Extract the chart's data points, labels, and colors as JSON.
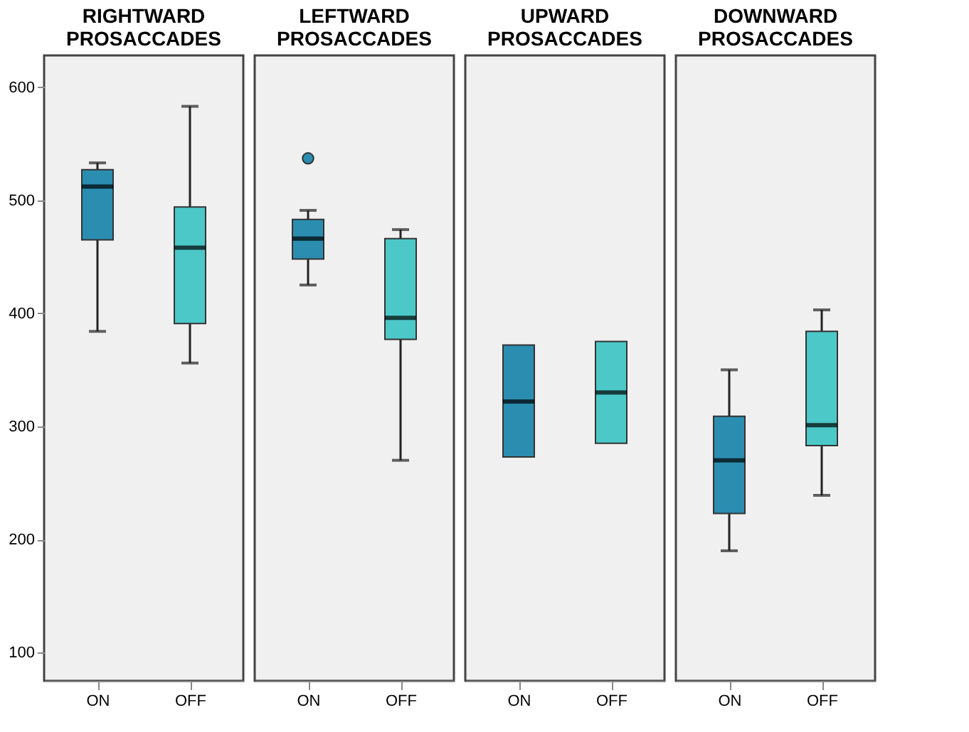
{
  "chart_data": [
    {
      "type": "box",
      "title": "RIGHTWARD PROSACCADES",
      "categories": [
        "ON",
        "OFF"
      ],
      "colors": [
        "#2b8db0",
        "#4cc8c8"
      ],
      "ylim": [
        75,
        628
      ],
      "yticks": [
        100,
        200,
        300,
        400,
        500,
        600
      ],
      "grid": false,
      "boxes": [
        {
          "low": 384,
          "q1": 465,
          "median": 512,
          "q3": 527,
          "high": 533
        },
        {
          "low": 356,
          "q1": 391,
          "median": 458,
          "q3": 494,
          "high": 583
        }
      ]
    },
    {
      "type": "box",
      "title": "LEFTWARD PROSACCADES",
      "categories": [
        "ON",
        "OFF"
      ],
      "colors": [
        "#2b8db0",
        "#4cc8c8"
      ],
      "ylim": [
        75,
        628
      ],
      "yticks": [
        100,
        200,
        300,
        400,
        500,
        600
      ],
      "grid": false,
      "tick_labels": "x",
      "boxes": [
        {
          "low": 425,
          "q1": 448,
          "median": 466,
          "q3": 483,
          "high": 491,
          "outliers": [
            537
          ]
        },
        {
          "low": 270,
          "q1": 377,
          "median": 396,
          "q3": 466,
          "high": 474
        }
      ]
    },
    {
      "type": "box",
      "title": "UPWARD PROSACCADES",
      "categories": [
        "ON",
        "OFF"
      ],
      "colors": [
        "#2b8db0",
        "#4cc8c8"
      ],
      "ylim": [
        75,
        628
      ],
      "yticks": [
        100,
        200,
        300,
        400,
        500,
        600
      ],
      "grid": false,
      "tick_labels": "x",
      "boxes": [
        {
          "low": 273,
          "q1": 273,
          "median": 322,
          "q3": 372,
          "high": 372
        },
        {
          "low": 285,
          "q1": 285,
          "median": 330,
          "q3": 375,
          "high": 375
        }
      ]
    },
    {
      "type": "box",
      "title": "DOWNWARD PROSACCADES",
      "categories": [
        "ON",
        "OFF"
      ],
      "colors": [
        "#2b8db0",
        "#4cc8c8"
      ],
      "ylim": [
        75,
        628
      ],
      "yticks": [
        100,
        200,
        300,
        400,
        500,
        600
      ],
      "grid": false,
      "tick_labels": "x",
      "boxes": [
        {
          "low": 190,
          "q1": 223,
          "median": 270,
          "q3": 309,
          "high": 350
        },
        {
          "low": 239,
          "q1": 283,
          "median": 301,
          "q3": 384,
          "high": 403
        }
      ]
    }
  ]
}
